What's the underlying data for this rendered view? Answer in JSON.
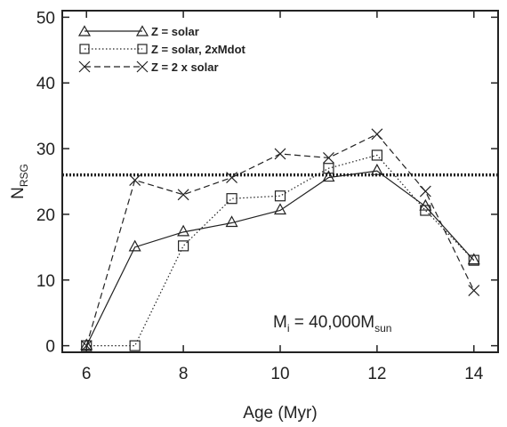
{
  "chart_data": {
    "type": "line",
    "xlabel": "Age (Myr)",
    "ylabel": {
      "main": "N",
      "sub": "RSG"
    },
    "xlim": [
      5.5,
      14.5
    ],
    "ylim": [
      -1,
      51
    ],
    "xticks": [
      6,
      8,
      10,
      12,
      14
    ],
    "yticks": [
      0,
      10,
      20,
      30,
      40,
      50
    ],
    "grid": false,
    "legend_position": "top-left",
    "reference_line": {
      "y": 26,
      "style": "heavy-dotted"
    },
    "annotation": {
      "prefix": "M",
      "prefix_sub": "i",
      "middle": " = 40,000M",
      "suffix_sub": "sun",
      "position": "lower-right"
    },
    "series": [
      {
        "name": "Z = solar",
        "marker": "triangle",
        "line": "solid",
        "x": [
          6,
          7,
          8,
          9,
          10,
          11,
          12,
          13,
          14
        ],
        "y": [
          0,
          15,
          17.3,
          18.7,
          20.6,
          25.6,
          26.6,
          21.2,
          13
        ]
      },
      {
        "name": "Z = solar, 2xMdot",
        "marker": "square",
        "line": "dotted",
        "x": [
          6,
          7,
          8,
          9,
          10,
          11,
          12,
          13,
          14
        ],
        "y": [
          0,
          0,
          15.2,
          22.4,
          22.8,
          27,
          29,
          20.6,
          13
        ]
      },
      {
        "name": "Z = 2 x solar",
        "marker": "x",
        "line": "dashed",
        "x": [
          6,
          7,
          8,
          9,
          10,
          11,
          12,
          13,
          14
        ],
        "y": [
          0,
          25.2,
          23,
          25.6,
          29.2,
          28.6,
          32.2,
          23.5,
          8.4
        ]
      }
    ]
  }
}
